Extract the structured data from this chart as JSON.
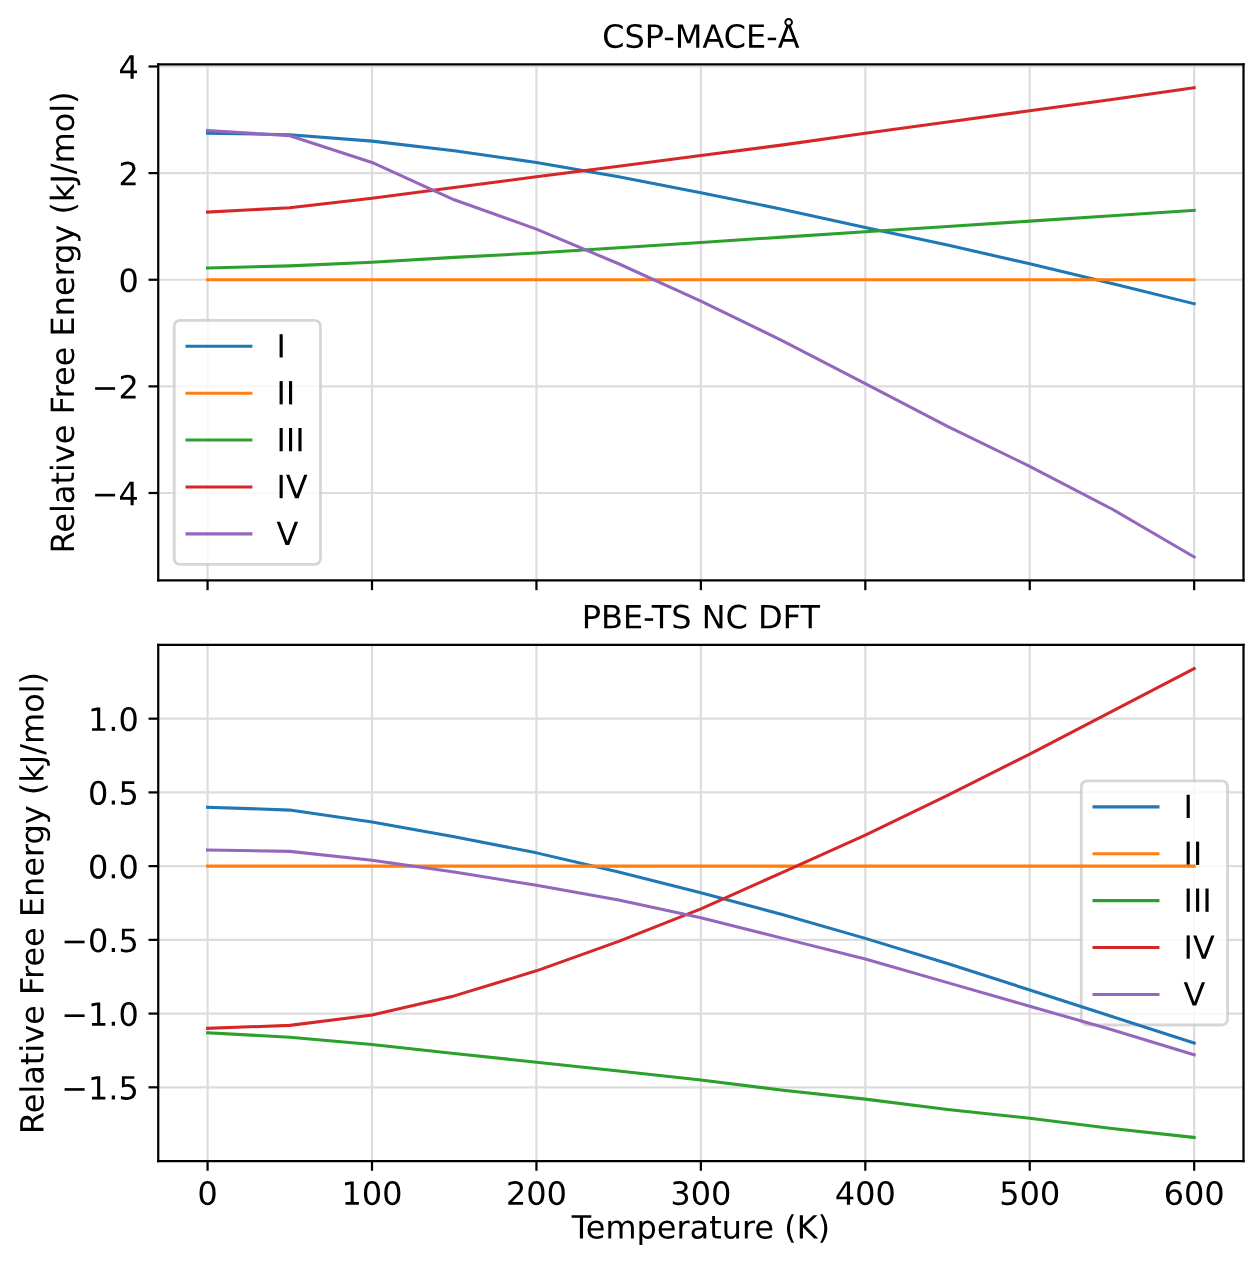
{
  "chart_data": [
    {
      "type": "line",
      "title": "CSP-MACE-Å",
      "ylabel": "Relative Free Energy (kJ/mol)",
      "x": [
        0,
        50,
        100,
        150,
        200,
        250,
        300,
        350,
        400,
        450,
        500,
        550,
        600
      ],
      "series": [
        {
          "name": "I",
          "color": "#1f77b4",
          "values": [
            2.75,
            2.72,
            2.6,
            2.42,
            2.2,
            1.93,
            1.63,
            1.32,
            0.98,
            0.65,
            0.3,
            -0.07,
            -0.45
          ]
        },
        {
          "name": "II",
          "color": "#ff7f0e",
          "values": [
            0,
            0,
            0,
            0,
            0,
            0,
            0,
            0,
            0,
            0,
            0,
            0,
            0
          ]
        },
        {
          "name": "III",
          "color": "#2ca02c",
          "values": [
            0.22,
            0.26,
            0.33,
            0.42,
            0.5,
            0.6,
            0.7,
            0.8,
            0.9,
            1.0,
            1.1,
            1.2,
            1.3
          ]
        },
        {
          "name": "IV",
          "color": "#d62728",
          "values": [
            1.27,
            1.35,
            1.53,
            1.73,
            1.93,
            2.13,
            2.33,
            2.53,
            2.75,
            2.96,
            3.17,
            3.38,
            3.6
          ]
        },
        {
          "name": "V",
          "color": "#9467bd",
          "values": [
            2.8,
            2.7,
            2.2,
            1.5,
            0.95,
            0.3,
            -0.4,
            -1.15,
            -1.95,
            -2.75,
            -3.5,
            -4.3,
            -5.2
          ]
        }
      ],
      "xlim": [
        -30,
        630
      ],
      "ylim": [
        -5.64,
        4.04
      ],
      "xticks": [
        0,
        100,
        200,
        300,
        400,
        500,
        600
      ],
      "yticks": [
        {
          "value": -4,
          "label": "−4"
        },
        {
          "value": -2,
          "label": "−2"
        },
        0,
        2,
        4
      ],
      "tick_labels": "y",
      "grid": true,
      "legend": "lower left"
    },
    {
      "type": "line",
      "title": "PBE-TS NC DFT",
      "xlabel": "Temperature (K)",
      "ylabel": "Relative Free Energy (kJ/mol)",
      "x": [
        0,
        50,
        100,
        150,
        200,
        250,
        300,
        350,
        400,
        450,
        500,
        550,
        600
      ],
      "series": [
        {
          "name": "I",
          "color": "#1f77b4",
          "values": [
            0.4,
            0.38,
            0.3,
            0.2,
            0.09,
            -0.04,
            -0.18,
            -0.33,
            -0.49,
            -0.66,
            -0.84,
            -1.02,
            -1.2
          ]
        },
        {
          "name": "II",
          "color": "#ff7f0e",
          "values": [
            0,
            0,
            0,
            0,
            0,
            0,
            0,
            0,
            0,
            0,
            0,
            0,
            0
          ]
        },
        {
          "name": "III",
          "color": "#2ca02c",
          "values": [
            -1.13,
            -1.16,
            -1.21,
            -1.27,
            -1.33,
            -1.39,
            -1.45,
            -1.52,
            -1.58,
            -1.65,
            -1.71,
            -1.78,
            -1.84
          ]
        },
        {
          "name": "IV",
          "color": "#d62728",
          "values": [
            -1.1,
            -1.08,
            -1.01,
            -0.88,
            -0.71,
            -0.51,
            -0.29,
            -0.04,
            0.21,
            0.48,
            0.76,
            1.05,
            1.34
          ]
        },
        {
          "name": "V",
          "color": "#9467bd",
          "values": [
            0.11,
            0.1,
            0.04,
            -0.04,
            -0.13,
            -0.23,
            -0.35,
            -0.49,
            -0.63,
            -0.79,
            -0.95,
            -1.11,
            -1.28
          ]
        }
      ],
      "xlim": [
        -30,
        630
      ],
      "ylim": [
        -2.0,
        1.5
      ],
      "xticks": [
        0,
        100,
        200,
        300,
        400,
        500,
        600
      ],
      "yticks": [
        {
          "value": -1.5,
          "label": "−1.5"
        },
        {
          "value": -1.0,
          "label": "−1.0"
        },
        {
          "value": -0.5,
          "label": "−0.5"
        },
        {
          "value": 0.0,
          "label": "0.0"
        },
        {
          "value": 0.5,
          "label": "0.5"
        },
        {
          "value": 1.0,
          "label": "1.0"
        }
      ],
      "grid": true,
      "legend": "center right"
    }
  ]
}
